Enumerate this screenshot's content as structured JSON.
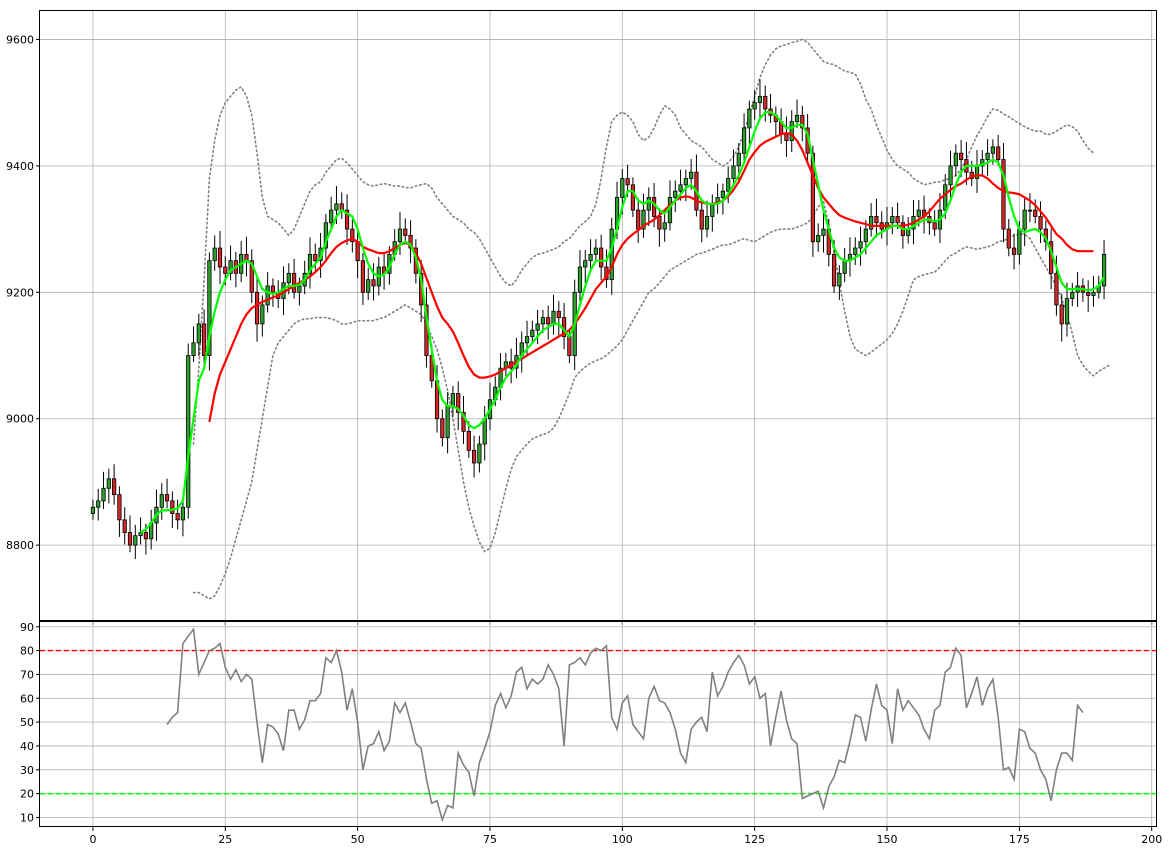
{
  "chart_data": [
    {
      "type": "candlestick",
      "title": "",
      "xlabel": "",
      "ylabel": "",
      "xlim": [
        -10,
        201
      ],
      "ylim": [
        8680,
        9645
      ],
      "grid": true,
      "x_ticks": [
        0,
        25,
        50,
        75,
        100,
        125,
        150,
        175,
        200
      ],
      "y_ticks": [
        8800,
        9000,
        9200,
        9400,
        9600
      ],
      "colors": {
        "up_candle": "#2ca02c",
        "down_candle": "#d62728",
        "candle_edge": "#000000",
        "fast_ma": "#00ff00",
        "slow_ma": "#ff0000",
        "bands": "#808080"
      },
      "candles_close": [
        8860,
        8870,
        8890,
        8905,
        8880,
        8840,
        8820,
        8800,
        8815,
        8820,
        8810,
        8835,
        8860,
        8880,
        8870,
        8850,
        8840,
        8860,
        9100,
        9120,
        9150,
        9100,
        9250,
        9270,
        9240,
        9230,
        9250,
        9230,
        9260,
        9250,
        9200,
        9150,
        9180,
        9210,
        9200,
        9190,
        9215,
        9230,
        9200,
        9210,
        9230,
        9260,
        9250,
        9270,
        9310,
        9330,
        9340,
        9330,
        9300,
        9280,
        9250,
        9200,
        9220,
        9210,
        9240,
        9230,
        9260,
        9280,
        9300,
        9290,
        9270,
        9230,
        9180,
        9100,
        9060,
        9000,
        8970,
        9020,
        9040,
        9010,
        8980,
        8950,
        8930,
        8960,
        9000,
        9030,
        9050,
        9080,
        9090,
        9080,
        9100,
        9120,
        9130,
        9140,
        9150,
        9160,
        9150,
        9170,
        9160,
        9130,
        9100,
        9200,
        9240,
        9250,
        9260,
        9270,
        9240,
        9220,
        9300,
        9350,
        9380,
        9370,
        9330,
        9300,
        9330,
        9350,
        9320,
        9300,
        9310,
        9350,
        9360,
        9370,
        9380,
        9390,
        9330,
        9300,
        9320,
        9340,
        9350,
        9360,
        9380,
        9400,
        9420,
        9460,
        9490,
        9500,
        9510,
        9490,
        9480,
        9470,
        9450,
        9440,
        9470,
        9480,
        9460,
        9420,
        9280,
        9290,
        9300,
        9260,
        9210,
        9230,
        9250,
        9260,
        9270,
        9280,
        9300,
        9320,
        9310,
        9300,
        9310,
        9320,
        9310,
        9290,
        9300,
        9320,
        9330,
        9320,
        9310,
        9300,
        9330,
        9370,
        9400,
        9420,
        9410,
        9390,
        9380,
        9400,
        9410,
        9420,
        9430,
        9410,
        9300,
        9270,
        9260,
        9300,
        9330,
        9330,
        9320,
        9300,
        9280,
        9230,
        9180,
        9150,
        9190,
        9200,
        9210,
        9200,
        9195,
        9200,
        9210,
        9260
      ],
      "fast_ma": [
        null,
        null,
        null,
        null,
        null,
        null,
        null,
        null,
        null,
        8820,
        8825,
        8835,
        8848,
        8855,
        8855,
        8856,
        8858,
        8870,
        8940,
        9000,
        9060,
        9080,
        9130,
        9170,
        9200,
        9220,
        9235,
        9240,
        9245,
        9250,
        9245,
        9225,
        9205,
        9200,
        9198,
        9200,
        9205,
        9210,
        9210,
        9212,
        9220,
        9235,
        9245,
        9255,
        9280,
        9300,
        9320,
        9330,
        9325,
        9320,
        9300,
        9270,
        9245,
        9230,
        9225,
        9228,
        9240,
        9260,
        9275,
        9280,
        9275,
        9255,
        9220,
        9160,
        9110,
        9060,
        9030,
        9020,
        9020,
        9015,
        9005,
        8990,
        8985,
        8990,
        9000,
        9015,
        9030,
        9050,
        9065,
        9075,
        9085,
        9100,
        9110,
        9120,
        9130,
        9140,
        9145,
        9150,
        9150,
        9140,
        9130,
        9150,
        9180,
        9210,
        9235,
        9250,
        9250,
        9250,
        9270,
        9300,
        9335,
        9360,
        9360,
        9345,
        9340,
        9345,
        9340,
        9330,
        9325,
        9335,
        9345,
        9355,
        9365,
        9370,
        9360,
        9345,
        9340,
        9340,
        9340,
        9345,
        9355,
        9370,
        9385,
        9405,
        9430,
        9455,
        9475,
        9485,
        9485,
        9480,
        9470,
        9460,
        9460,
        9465,
        9465,
        9450,
        9410,
        9370,
        9330,
        9300,
        9270,
        9255,
        9250,
        9250,
        9255,
        9260,
        9270,
        9280,
        9290,
        9295,
        9300,
        9305,
        9305,
        9300,
        9300,
        9305,
        9310,
        9315,
        9315,
        9312,
        9315,
        9325,
        9345,
        9370,
        9390,
        9400,
        9400,
        9400,
        9402,
        9405,
        9410,
        9405,
        9385,
        9350,
        9320,
        9300,
        9295,
        9298,
        9300,
        9295,
        9285,
        9265,
        9240,
        9215,
        9205,
        9205,
        9205,
        9205,
        9203,
        9205,
        9210,
        9225
      ],
      "slow_ma": [
        null,
        null,
        null,
        null,
        null,
        null,
        null,
        null,
        null,
        null,
        null,
        null,
        null,
        null,
        null,
        null,
        null,
        null,
        null,
        null,
        null,
        null,
        8995,
        9040,
        9070,
        9090,
        9110,
        9130,
        9150,
        9165,
        9175,
        9180,
        9185,
        9188,
        9192,
        9195,
        9200,
        9205,
        9210,
        9215,
        9220,
        9225,
        9232,
        9240,
        9250,
        9262,
        9272,
        9278,
        9282,
        9285,
        9280,
        9272,
        9268,
        9265,
        9262,
        9262,
        9265,
        9270,
        9275,
        9278,
        9275,
        9262,
        9245,
        9222,
        9200,
        9178,
        9160,
        9150,
        9138,
        9120,
        9100,
        9082,
        9070,
        9065,
        9065,
        9067,
        9070,
        9075,
        9080,
        9085,
        9090,
        9095,
        9100,
        9105,
        9110,
        9115,
        9120,
        9125,
        9130,
        9135,
        9140,
        9150,
        9162,
        9175,
        9190,
        9205,
        9215,
        9225,
        9240,
        9260,
        9275,
        9285,
        9292,
        9298,
        9305,
        9310,
        9315,
        9322,
        9330,
        9338,
        9345,
        9350,
        9352,
        9350,
        9345,
        9342,
        9340,
        9340,
        9342,
        9345,
        9352,
        9362,
        9375,
        9392,
        9410,
        9422,
        9432,
        9438,
        9442,
        9446,
        9450,
        9452,
        9450,
        9440,
        9425,
        9405,
        9385,
        9365,
        9350,
        9340,
        9330,
        9322,
        9318,
        9315,
        9312,
        9310,
        9308,
        9305,
        9305,
        9305,
        9305,
        9305,
        9305,
        9305,
        9307,
        9310,
        9315,
        9320,
        9328,
        9338,
        9348,
        9355,
        9362,
        9368,
        9372,
        9378,
        9383,
        9385,
        9385,
        9380,
        9372,
        9365,
        9360,
        9358,
        9357,
        9355,
        9350,
        9345,
        9338,
        9328,
        9318,
        9305,
        9292,
        9285,
        9275,
        9268,
        9265,
        9265,
        9265,
        9265
      ],
      "upper_band": [
        null,
        null,
        null,
        null,
        null,
        null,
        null,
        null,
        null,
        null,
        null,
        null,
        null,
        null,
        null,
        null,
        null,
        null,
        null,
        8960,
        9080,
        9220,
        9380,
        9440,
        9480,
        9500,
        9510,
        9520,
        9525,
        9510,
        9480,
        9420,
        9350,
        9320,
        9315,
        9310,
        9300,
        9290,
        9300,
        9320,
        9340,
        9360,
        9370,
        9375,
        9390,
        9400,
        9410,
        9412,
        9405,
        9395,
        9385,
        9375,
        9370,
        9368,
        9370,
        9372,
        9370,
        9368,
        9368,
        9366,
        9365,
        9368,
        9370,
        9372,
        9365,
        9350,
        9340,
        9330,
        9320,
        9315,
        9310,
        9300,
        9295,
        9285,
        9270,
        9255,
        9240,
        9225,
        9215,
        9210,
        9220,
        9235,
        9245,
        9255,
        9260,
        9262,
        9265,
        9268,
        9272,
        9280,
        9285,
        9295,
        9305,
        9312,
        9320,
        9340,
        9380,
        9430,
        9470,
        9480,
        9485,
        9480,
        9470,
        9450,
        9440,
        9445,
        9460,
        9480,
        9495,
        9490,
        9480,
        9460,
        9450,
        9440,
        9435,
        9430,
        9420,
        9410,
        9405,
        9400,
        9405,
        9415,
        9430,
        9455,
        9480,
        9510,
        9540,
        9560,
        9575,
        9585,
        9590,
        9592,
        9595,
        9597,
        9600,
        9595,
        9585,
        9575,
        9565,
        9562,
        9560,
        9555,
        9550,
        9548,
        9545,
        9530,
        9505,
        9490,
        9465,
        9445,
        9425,
        9410,
        9400,
        9395,
        9390,
        9380,
        9375,
        9370,
        9372,
        9374,
        9375,
        9378,
        9380,
        9385,
        9395,
        9410,
        9430,
        9448,
        9462,
        9478,
        9490,
        9488,
        9482,
        9478,
        9472,
        9467,
        9462,
        9458,
        9455,
        9455,
        9450,
        9450,
        9455,
        9460,
        9465,
        9462,
        9455,
        9440,
        9428,
        9420
      ],
      "lower_band": [
        null,
        null,
        null,
        null,
        null,
        null,
        null,
        null,
        null,
        null,
        null,
        null,
        null,
        null,
        null,
        null,
        null,
        null,
        null,
        8725,
        8725,
        8720,
        8715,
        8720,
        8735,
        8755,
        8780,
        8810,
        8840,
        8870,
        8900,
        8950,
        9000,
        9050,
        9100,
        9120,
        9130,
        9140,
        9150,
        9155,
        9158,
        9158,
        9160,
        9160,
        9160,
        9158,
        9155,
        9150,
        9150,
        9152,
        9155,
        9155,
        9155,
        9155,
        9158,
        9160,
        9165,
        9170,
        9175,
        9180,
        9175,
        9170,
        9165,
        9150,
        9130,
        9110,
        9080,
        9045,
        9000,
        8950,
        8900,
        8860,
        8830,
        8805,
        8790,
        8795,
        8820,
        8855,
        8890,
        8920,
        8940,
        8950,
        8960,
        8968,
        8972,
        8975,
        8978,
        8985,
        9000,
        9020,
        9040,
        9065,
        9075,
        9082,
        9088,
        9092,
        9095,
        9100,
        9108,
        9115,
        9125,
        9140,
        9155,
        9170,
        9185,
        9200,
        9205,
        9215,
        9225,
        9235,
        9240,
        9245,
        9250,
        9255,
        9260,
        9262,
        9265,
        9268,
        9272,
        9275,
        9275,
        9278,
        9282,
        9285,
        9282,
        9280,
        9285,
        9290,
        9295,
        9298,
        9300,
        9300,
        9300,
        9303,
        9306,
        9310,
        9320,
        9335,
        9345,
        9305,
        9265,
        9215,
        9170,
        9130,
        9110,
        9105,
        9100,
        9105,
        9112,
        9118,
        9125,
        9135,
        9150,
        9170,
        9195,
        9220,
        9225,
        9228,
        9230,
        9232,
        9240,
        9250,
        9258,
        9262,
        9268,
        9272,
        9270,
        9268,
        9270,
        9272,
        9275,
        9280,
        9282,
        9285,
        9290,
        9292,
        9292,
        9285,
        9270,
        9255,
        9240,
        9225,
        9210,
        9190,
        9165,
        9135,
        9100,
        9085,
        9075,
        9068,
        9075,
        9080,
        9085
      ]
    },
    {
      "type": "line",
      "title": "",
      "xlabel": "",
      "ylabel": "",
      "xlim": [
        -10,
        201
      ],
      "ylim": [
        6,
        92
      ],
      "grid": true,
      "x_ticks": [
        0,
        25,
        50,
        75,
        100,
        125,
        150,
        175,
        200
      ],
      "y_ticks": [
        10,
        20,
        30,
        40,
        50,
        60,
        70,
        80,
        90
      ],
      "thresholds": [
        {
          "value": 80,
          "color": "#ff0000"
        },
        {
          "value": 20,
          "color": "#00ff00"
        }
      ],
      "line_color": "#808080",
      "x_start": 14,
      "values": [
        49,
        52,
        54,
        83,
        86,
        89,
        70,
        75,
        80,
        81,
        83,
        73,
        68,
        72,
        67,
        70,
        68,
        50,
        33,
        49,
        48,
        45,
        38,
        55,
        55,
        47,
        51,
        59,
        59,
        62,
        77,
        75,
        80,
        71,
        55,
        64,
        50,
        30,
        40,
        41,
        46,
        38,
        42,
        58,
        54,
        58,
        50,
        41,
        39,
        26,
        16,
        17,
        9,
        15,
        14,
        37,
        32,
        29,
        19,
        33,
        39,
        46,
        57,
        62,
        56,
        61,
        71,
        73,
        64,
        68,
        66,
        68,
        74,
        70,
        64,
        40,
        74,
        75,
        77,
        74,
        79,
        81,
        80,
        82,
        52,
        47,
        58,
        61,
        49,
        46,
        43,
        60,
        65,
        59,
        58,
        54,
        47,
        37,
        33,
        47,
        50,
        52,
        46,
        71,
        61,
        65,
        71,
        75,
        78,
        74,
        66,
        69,
        60,
        62,
        40,
        52,
        63,
        51,
        43,
        41,
        18,
        19,
        20,
        21,
        14,
        23,
        27,
        34,
        33,
        42,
        53,
        52,
        42,
        55,
        66,
        57,
        55,
        41,
        64,
        55,
        59,
        56,
        53,
        47,
        43,
        55,
        57,
        71,
        73,
        81,
        78,
        56,
        62,
        69,
        57,
        64,
        68,
        52,
        30,
        31,
        26,
        47,
        46,
        39,
        37,
        30,
        26,
        17,
        30,
        37,
        37,
        34,
        57,
        54
      ]
    }
  ]
}
